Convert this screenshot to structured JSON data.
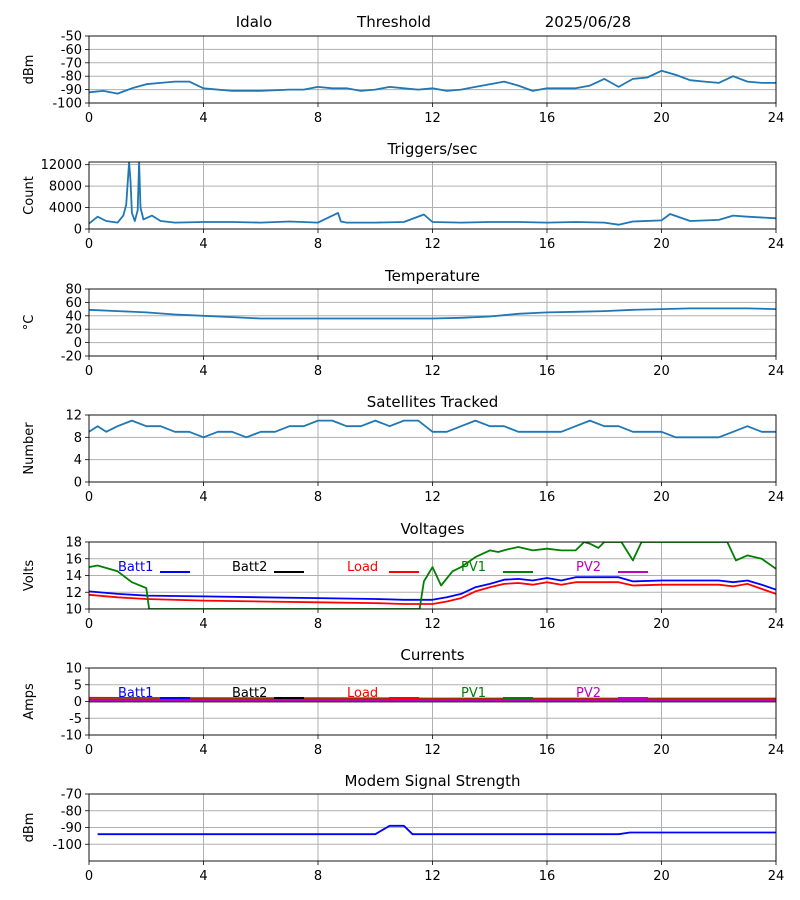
{
  "header": {
    "station": "Idalo",
    "mode": "Threshold",
    "date": "2025/06/28"
  },
  "colors": {
    "default_line": "#1f77b4",
    "grid": "#b0b0b0",
    "batt1": "#0000ff",
    "batt2": "#000000",
    "load": "#ff0000",
    "pv1": "#008000",
    "pv2": "#c000c0"
  },
  "chart_data": [
    {
      "id": "threshold",
      "type": "line",
      "title": "",
      "ylabel": "dBm",
      "xlim": [
        0,
        24
      ],
      "ylim": [
        -100,
        -50
      ],
      "xticks": [
        0,
        4,
        8,
        12,
        16,
        20,
        24
      ],
      "yticks": [
        -50,
        -60,
        -70,
        -80,
        -90,
        -100
      ],
      "grid": true,
      "series": [
        {
          "color": "#1f77b4",
          "x": [
            0,
            0.5,
            1,
            1.5,
            2,
            2.5,
            3,
            3.5,
            4,
            5,
            6,
            7,
            7.5,
            8,
            8.5,
            9,
            9.5,
            10,
            10.5,
            11,
            11.5,
            12,
            12.5,
            13,
            13.5,
            14,
            14.5,
            15,
            15.5,
            16,
            16.5,
            17,
            17.5,
            18,
            18.5,
            19,
            19.5,
            20,
            20.5,
            21,
            21.5,
            22,
            22.5,
            23,
            23.5,
            24
          ],
          "y": [
            -92,
            -91,
            -93,
            -89,
            -86,
            -85,
            -84,
            -84,
            -89,
            -91,
            -91,
            -90,
            -90,
            -88,
            -89,
            -89,
            -91,
            -90,
            -88,
            -89,
            -90,
            -89,
            -91,
            -90,
            -88,
            -86,
            -84,
            -87,
            -91,
            -89,
            -89,
            -89,
            -87,
            -82,
            -88,
            -82,
            -81,
            -76,
            -79,
            -83,
            -84,
            -85,
            -80,
            -84,
            -85,
            -85
          ]
        }
      ]
    },
    {
      "id": "triggers",
      "type": "line",
      "title": "Triggers/sec",
      "ylabel": "Count",
      "xlim": [
        0,
        24
      ],
      "ylim": [
        0,
        12500
      ],
      "xticks": [
        0,
        4,
        8,
        12,
        16,
        20,
        24
      ],
      "yticks": [
        0,
        4000,
        8000,
        12000
      ],
      "grid": true,
      "series": [
        {
          "color": "#1f77b4",
          "x": [
            0,
            0.3,
            0.6,
            1,
            1.2,
            1.3,
            1.4,
            1.45,
            1.5,
            1.6,
            1.7,
            1.75,
            1.8,
            1.9,
            2.2,
            2.5,
            3,
            4,
            5,
            6,
            7,
            8,
            8.7,
            8.8,
            9,
            10,
            11,
            11.7,
            12,
            13,
            14,
            15,
            16,
            17,
            18,
            18.5,
            19,
            20,
            20.3,
            21,
            22,
            22.5,
            23,
            24
          ],
          "y": [
            1000,
            2300,
            1500,
            1200,
            2500,
            4500,
            12500,
            9000,
            3000,
            1500,
            3500,
            12500,
            4000,
            1800,
            2500,
            1500,
            1200,
            1300,
            1300,
            1200,
            1400,
            1200,
            3000,
            1400,
            1200,
            1200,
            1300,
            2700,
            1300,
            1200,
            1300,
            1300,
            1200,
            1300,
            1200,
            800,
            1400,
            1600,
            2800,
            1500,
            1700,
            2500,
            2300,
            2000
          ]
        }
      ]
    },
    {
      "id": "temperature",
      "type": "line",
      "title": "Temperature",
      "ylabel": "°C",
      "xlim": [
        0,
        24
      ],
      "ylim": [
        -20,
        80
      ],
      "xticks": [
        0,
        4,
        8,
        12,
        16,
        20,
        24
      ],
      "yticks": [
        -20,
        0,
        20,
        40,
        60,
        80
      ],
      "grid": true,
      "series": [
        {
          "color": "#1f77b4",
          "x": [
            0,
            1,
            2,
            3,
            4,
            5,
            6,
            8,
            10,
            12,
            13,
            14,
            15,
            16,
            17,
            18,
            19,
            20,
            21,
            22,
            23,
            24
          ],
          "y": [
            49,
            47,
            45,
            42,
            40,
            38,
            36,
            36,
            36,
            36,
            37,
            39,
            43,
            45,
            46,
            47,
            49,
            50,
            51,
            51,
            51,
            50
          ]
        }
      ]
    },
    {
      "id": "satellites",
      "type": "line",
      "title": "Satellites Tracked",
      "ylabel": "Number",
      "xlim": [
        0,
        24
      ],
      "ylim": [
        0,
        12
      ],
      "xticks": [
        0,
        4,
        8,
        12,
        16,
        20,
        24
      ],
      "yticks": [
        0,
        4,
        8,
        12
      ],
      "grid": true,
      "series": [
        {
          "color": "#1f77b4",
          "x": [
            0,
            0.3,
            0.6,
            1,
            1.5,
            2,
            2.5,
            3,
            3.5,
            4,
            4.5,
            5,
            5.5,
            6,
            6.5,
            7,
            7.5,
            8,
            8.5,
            9,
            9.5,
            10,
            10.5,
            11,
            11.5,
            12,
            12.5,
            13,
            13.5,
            14,
            14.5,
            15,
            15.5,
            16,
            16.5,
            17,
            17.5,
            18,
            18.5,
            19,
            19.5,
            20,
            20.5,
            21,
            21.5,
            22,
            22.5,
            23,
            23.5,
            24
          ],
          "y": [
            9,
            10,
            9,
            10,
            11,
            10,
            10,
            9,
            9,
            8,
            9,
            9,
            8,
            9,
            9,
            10,
            10,
            11,
            11,
            10,
            10,
            11,
            10,
            11,
            11,
            9,
            9,
            10,
            11,
            10,
            10,
            9,
            9,
            9,
            9,
            10,
            11,
            10,
            10,
            9,
            9,
            9,
            8,
            8,
            8,
            8,
            9,
            10,
            9,
            9
          ]
        }
      ]
    },
    {
      "id": "voltages",
      "type": "line",
      "title": "Voltages",
      "ylabel": "Volts",
      "xlim": [
        0,
        24
      ],
      "ylim": [
        10,
        18
      ],
      "xticks": [
        0,
        4,
        8,
        12,
        16,
        20,
        24
      ],
      "yticks": [
        10,
        12,
        14,
        16,
        18
      ],
      "grid": true,
      "legend": {
        "placement": "top",
        "labels": [
          "Batt1",
          "Batt2",
          "Load",
          "PV1",
          "PV2"
        ]
      },
      "series": [
        {
          "name": "Batt1",
          "color": "#0000ff",
          "x": [
            0,
            1,
            2,
            4,
            6,
            8,
            10,
            11,
            12,
            12.5,
            13,
            13.5,
            14,
            14.5,
            15,
            15.5,
            16,
            16.5,
            17,
            18,
            18.5,
            19,
            20,
            22,
            22.5,
            23,
            23.5,
            24
          ],
          "y": [
            12.1,
            11.8,
            11.6,
            11.5,
            11.4,
            11.3,
            11.2,
            11.1,
            11.1,
            11.4,
            11.8,
            12.6,
            13.0,
            13.5,
            13.6,
            13.4,
            13.7,
            13.4,
            13.8,
            13.8,
            13.8,
            13.3,
            13.4,
            13.4,
            13.2,
            13.4,
            12.9,
            12.3
          ]
        },
        {
          "name": "Batt2",
          "color": "#000000",
          "x": [],
          "y": []
        },
        {
          "name": "Load",
          "color": "#ff0000",
          "x": [
            0,
            1,
            2,
            4,
            6,
            8,
            10,
            11,
            12,
            12.5,
            13,
            13.5,
            14,
            14.5,
            15,
            15.5,
            16,
            16.5,
            17,
            18,
            18.5,
            19,
            20,
            22,
            22.5,
            23,
            23.5,
            24
          ],
          "y": [
            11.7,
            11.4,
            11.2,
            11.0,
            10.9,
            10.8,
            10.7,
            10.6,
            10.6,
            10.9,
            11.3,
            12.1,
            12.6,
            13.0,
            13.1,
            12.9,
            13.2,
            12.9,
            13.2,
            13.2,
            13.2,
            12.8,
            12.9,
            12.9,
            12.7,
            13.0,
            12.4,
            11.8
          ]
        },
        {
          "name": "PV1",
          "color": "#008000",
          "x": [
            0,
            0.3,
            1,
            1.5,
            2,
            2.1,
            11.55,
            11.7,
            12,
            12.3,
            12.7,
            13,
            13.5,
            14,
            14.3,
            14.6,
            15,
            15.5,
            16,
            16.5,
            17,
            17.3,
            17.5,
            17.8,
            18,
            18.3,
            18.6,
            19,
            19.3,
            19.6,
            20,
            20.3,
            20.6,
            21,
            21.5,
            22,
            22.3,
            22.6,
            23,
            23.5,
            24
          ],
          "y": [
            15,
            15.2,
            14.5,
            13.2,
            12.5,
            10,
            10,
            13.3,
            15.0,
            12.8,
            14.5,
            15.0,
            16.2,
            17.0,
            16.8,
            17.1,
            17.4,
            17.0,
            17.2,
            17.0,
            17.0,
            18.0,
            17.8,
            17.3,
            18.0,
            18.0,
            18.0,
            15.8,
            18.0,
            18.0,
            18.0,
            18.0,
            18.0,
            18.0,
            18.0,
            18.0,
            18.0,
            15.8,
            16.4,
            16.0,
            14.8
          ]
        },
        {
          "name": "PV2",
          "color": "#c000c0",
          "x": [],
          "y": []
        }
      ]
    },
    {
      "id": "currents",
      "type": "line",
      "title": "Currents",
      "ylabel": "Amps",
      "xlim": [
        0,
        24
      ],
      "ylim": [
        -10,
        10
      ],
      "xticks": [
        0,
        4,
        8,
        12,
        16,
        20,
        24
      ],
      "yticks": [
        -10,
        -5,
        0,
        5,
        10
      ],
      "grid": true,
      "legend": {
        "placement": "top",
        "labels": [
          "Batt1",
          "Batt2",
          "Load",
          "PV1",
          "PV2"
        ]
      },
      "series": [
        {
          "name": "Batt1",
          "color": "#0000ff",
          "x": [
            0,
            24
          ],
          "y": [
            0.3,
            0.3
          ]
        },
        {
          "name": "Batt2",
          "color": "#000000",
          "x": [
            0,
            24
          ],
          "y": [
            0,
            0
          ]
        },
        {
          "name": "Load",
          "color": "#ff0000",
          "x": [
            0,
            4,
            8,
            12,
            16,
            20,
            24
          ],
          "y": [
            1.1,
            1.0,
            1.0,
            0.9,
            0.9,
            0.9,
            0.9
          ]
        },
        {
          "name": "PV1",
          "color": "#008000",
          "x": [
            0,
            24
          ],
          "y": [
            0.6,
            0.6
          ]
        },
        {
          "name": "PV2",
          "color": "#c000c0",
          "x": [
            0,
            24
          ],
          "y": [
            0.2,
            0.2
          ]
        }
      ]
    },
    {
      "id": "modem",
      "type": "line",
      "title": "Modem Signal Strength",
      "ylabel": "dBm",
      "xlim": [
        0,
        24
      ],
      "ylim": [
        -110,
        -70
      ],
      "xticks": [
        0,
        4,
        8,
        12,
        16,
        20,
        24
      ],
      "yticks": [
        -70,
        -80,
        -90,
        -100
      ],
      "grid": true,
      "series": [
        {
          "color": "#0000ff",
          "x": [
            0.3,
            10,
            10.5,
            11,
            11.3,
            18.5,
            18.9,
            24
          ],
          "y": [
            -94,
            -94,
            -89,
            -89,
            -94,
            -94,
            -93,
            -93
          ]
        }
      ]
    }
  ]
}
